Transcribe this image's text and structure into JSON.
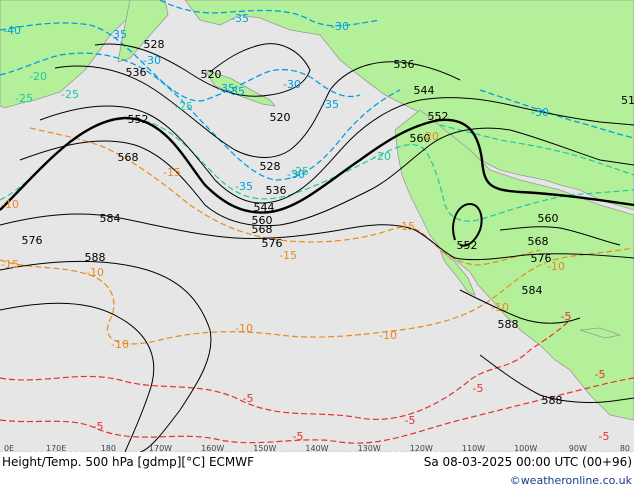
{
  "footer": {
    "title": "Height/Temp. 500 hPa [gdmp][°C] ECMWF",
    "datetime": "Sa 08-03-2025 00:00 UTC (00+96)",
    "credit": "©weatheronline.co.uk"
  },
  "lon_ticks": [
    "0E",
    "170E",
    "180",
    "170W",
    "160W",
    "150W",
    "140W",
    "130W",
    "120W",
    "110W",
    "100W",
    "90W",
    "80"
  ],
  "colors": {
    "land": "#b4f09a",
    "ocean": "#e6e6e6",
    "height_contour": "#000000",
    "temp_cold": "#00a0e0",
    "temp_cool": "#20c8a0",
    "temp_mild": "#e88a20",
    "temp_warm": "#e83030"
  },
  "height_labels": [
    "528",
    "536",
    "520",
    "520",
    "552",
    "568",
    "528",
    "536",
    "544",
    "560",
    "568",
    "576",
    "584",
    "588",
    "536",
    "544",
    "552",
    "560",
    "552",
    "560",
    "568",
    "576",
    "584",
    "588",
    "588",
    "576",
    "51"
  ],
  "temp_labels": [
    "-40",
    "-35",
    "-35",
    "-30",
    "-30",
    "-35",
    "-30",
    "-25",
    "-25",
    "-20",
    "-20",
    "-25",
    "-35",
    "-35",
    "-30",
    "-20",
    "-15",
    "-15",
    "-15",
    "-10",
    "-10",
    "-10",
    "-10",
    "-10",
    "-10",
    "-5",
    "-5",
    "-5",
    "-5",
    "-5",
    "-5",
    "-5",
    "-15",
    "-35",
    "-25",
    "-30",
    "-10",
    "-5"
  ]
}
